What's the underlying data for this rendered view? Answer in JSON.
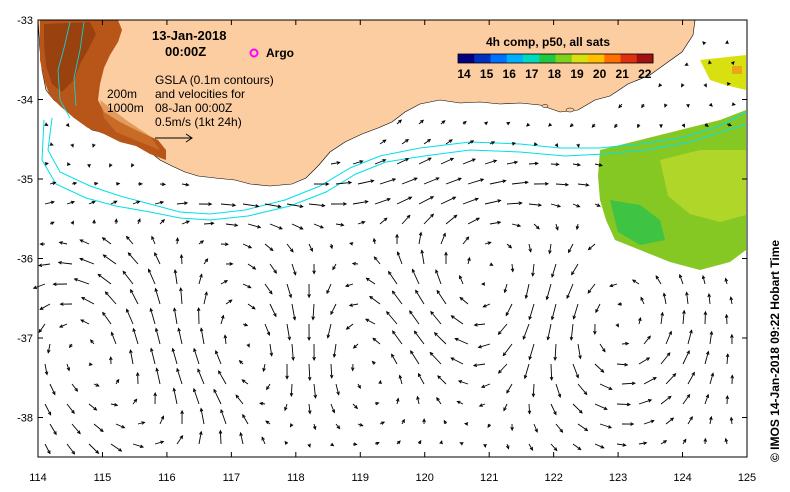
{
  "title": {
    "date": "13-Jan-2018",
    "time": "00:00Z"
  },
  "argo_label": "Argo",
  "depth_contours": [
    "200m",
    "1000m"
  ],
  "gsla_lines": [
    "GSLA (0.1m contours)",
    "and velocities for",
    "08-Jan 00:00Z",
    "0.5m/s (1kt 24h)"
  ],
  "colorbar": {
    "title": "4h comp, p50, all sats",
    "ticks": [
      "14",
      "15",
      "16",
      "17",
      "18",
      "19",
      "20",
      "21",
      "22"
    ],
    "colors": [
      "#000080",
      "#0030c0",
      "#0070ff",
      "#00b0ff",
      "#00d8c0",
      "#20c840",
      "#80d020",
      "#d8e010",
      "#ffc000",
      "#ff7000",
      "#e03010",
      "#a01010"
    ]
  },
  "x_axis": {
    "ticks": [
      "114",
      "115",
      "116",
      "117",
      "118",
      "119",
      "120",
      "121",
      "122",
      "123",
      "124",
      "125"
    ]
  },
  "y_axis": {
    "ticks": [
      "-33",
      "-34",
      "-35",
      "-36",
      "-37",
      "-38"
    ]
  },
  "credit": "© IMOS 14-Jan-2018 09:22 Hobart Time",
  "colors": {
    "land": "#fccda0",
    "contour": "#00e0e8",
    "argo": "#ff00ff",
    "sst_warm": "#b04a10",
    "sst_green": "#7cc020"
  }
}
